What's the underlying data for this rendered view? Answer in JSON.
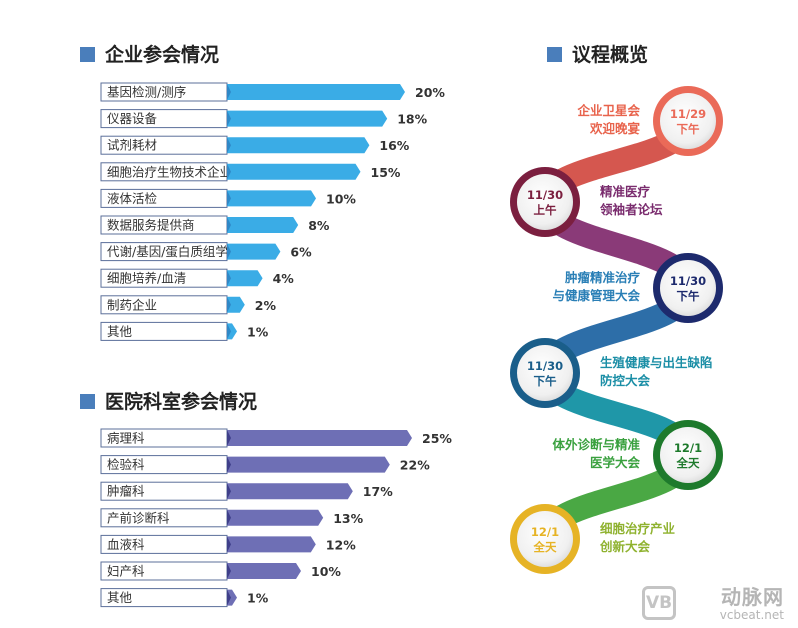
{
  "chart_data": [
    {
      "type": "bar",
      "orientation": "horizontal",
      "title": "企业参会情况",
      "categories": [
        "基因检测/测序",
        "仪器设备",
        "试剂耗材",
        "细胞治疗生物技术企业",
        "液体活检",
        "数据服务提供商",
        "代谢/基因/蛋白质组学等",
        "细胞培养/血清",
        "制药企业",
        "其他"
      ],
      "values": [
        20,
        18,
        16,
        15,
        10,
        8,
        6,
        4,
        2,
        1
      ],
      "value_labels": [
        "20%",
        "18%",
        "16%",
        "15%",
        "10%",
        "8%",
        "6%",
        "4%",
        "2%",
        "1%"
      ],
      "unit": "%",
      "color": "#3aace6"
    },
    {
      "type": "bar",
      "orientation": "horizontal",
      "title": "医院科室参会情况",
      "categories": [
        "病理科",
        "检验科",
        "肿瘤科",
        "产前诊断科",
        "血液科",
        "妇产科",
        "其他"
      ],
      "values": [
        25,
        22,
        17,
        13,
        12,
        10,
        1
      ],
      "value_labels": [
        "25%",
        "22%",
        "17%",
        "13%",
        "12%",
        "10%",
        "1%"
      ],
      "unit": "%",
      "color": "#6e6fb5"
    }
  ],
  "agenda": {
    "title": "议程概览",
    "items": [
      {
        "date": "11/29",
        "time": "下午",
        "lines": [
          "企业卫星会",
          "欢迎晚宴"
        ],
        "color": "#ea6a58"
      },
      {
        "date": "11/30",
        "time": "上午",
        "lines": [
          "精准医疗",
          "领袖者论坛"
        ],
        "color": "#7b1f3f"
      },
      {
        "date": "11/30",
        "time": "下午",
        "lines": [
          "肿瘤精准治疗",
          "与健康管理大会"
        ],
        "color": "#1d2a6d"
      },
      {
        "date": "11/30",
        "time": "下午",
        "lines": [
          "生殖健康与出生缺陷",
          "防控大会"
        ],
        "color": "#1a5e8a"
      },
      {
        "date": "12/1",
        "time": "全天",
        "lines": [
          "体外诊断与精准",
          "医学大会"
        ],
        "color": "#1e7a2c"
      },
      {
        "date": "12/1",
        "time": "全天",
        "lines": [
          "细胞治疗产业",
          "创新大会"
        ],
        "color": "#e6b325"
      }
    ],
    "text_colors": [
      "#e8634c",
      "#7a2c6e",
      "#2a7fb6",
      "#1b8ea6",
      "#3aa13f",
      "#8fb22f"
    ]
  },
  "watermark": {
    "logo_text": "VB",
    "brand": "动脉网",
    "url": "vcbeat.net"
  }
}
